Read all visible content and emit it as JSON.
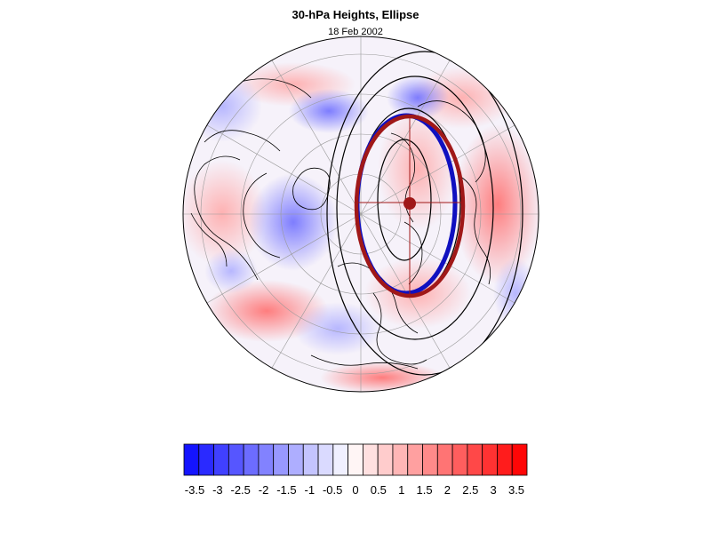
{
  "title": "30-hPa Heights, Ellipse",
  "subtitle": "18 Feb 2002",
  "colorbar": {
    "colors": [
      "#1414ff",
      "#2a2aff",
      "#4040ff",
      "#5656ff",
      "#6c6cff",
      "#8282ff",
      "#9898ff",
      "#aeaeff",
      "#c4c4ff",
      "#dadaff",
      "#f0f0ff",
      "#fff5f5",
      "#ffe0e0",
      "#ffcccc",
      "#ffb6b6",
      "#ffa0a0",
      "#ff8a8a",
      "#ff7474",
      "#ff5e5e",
      "#ff4848",
      "#ff3232",
      "#ff1c1c",
      "#ff0606"
    ],
    "tick_labels": [
      "-3.5",
      "-3",
      "-2.5",
      "-2",
      "-1.5",
      "-1",
      "-0.5",
      "0",
      "0.5",
      "1",
      "1.5",
      "2",
      "2.5",
      "3",
      "3.5"
    ]
  },
  "legend_colors": {
    "ellipse_red": "#a01818",
    "ellipse_blue": "#1010c0",
    "contour": "#000000"
  }
}
